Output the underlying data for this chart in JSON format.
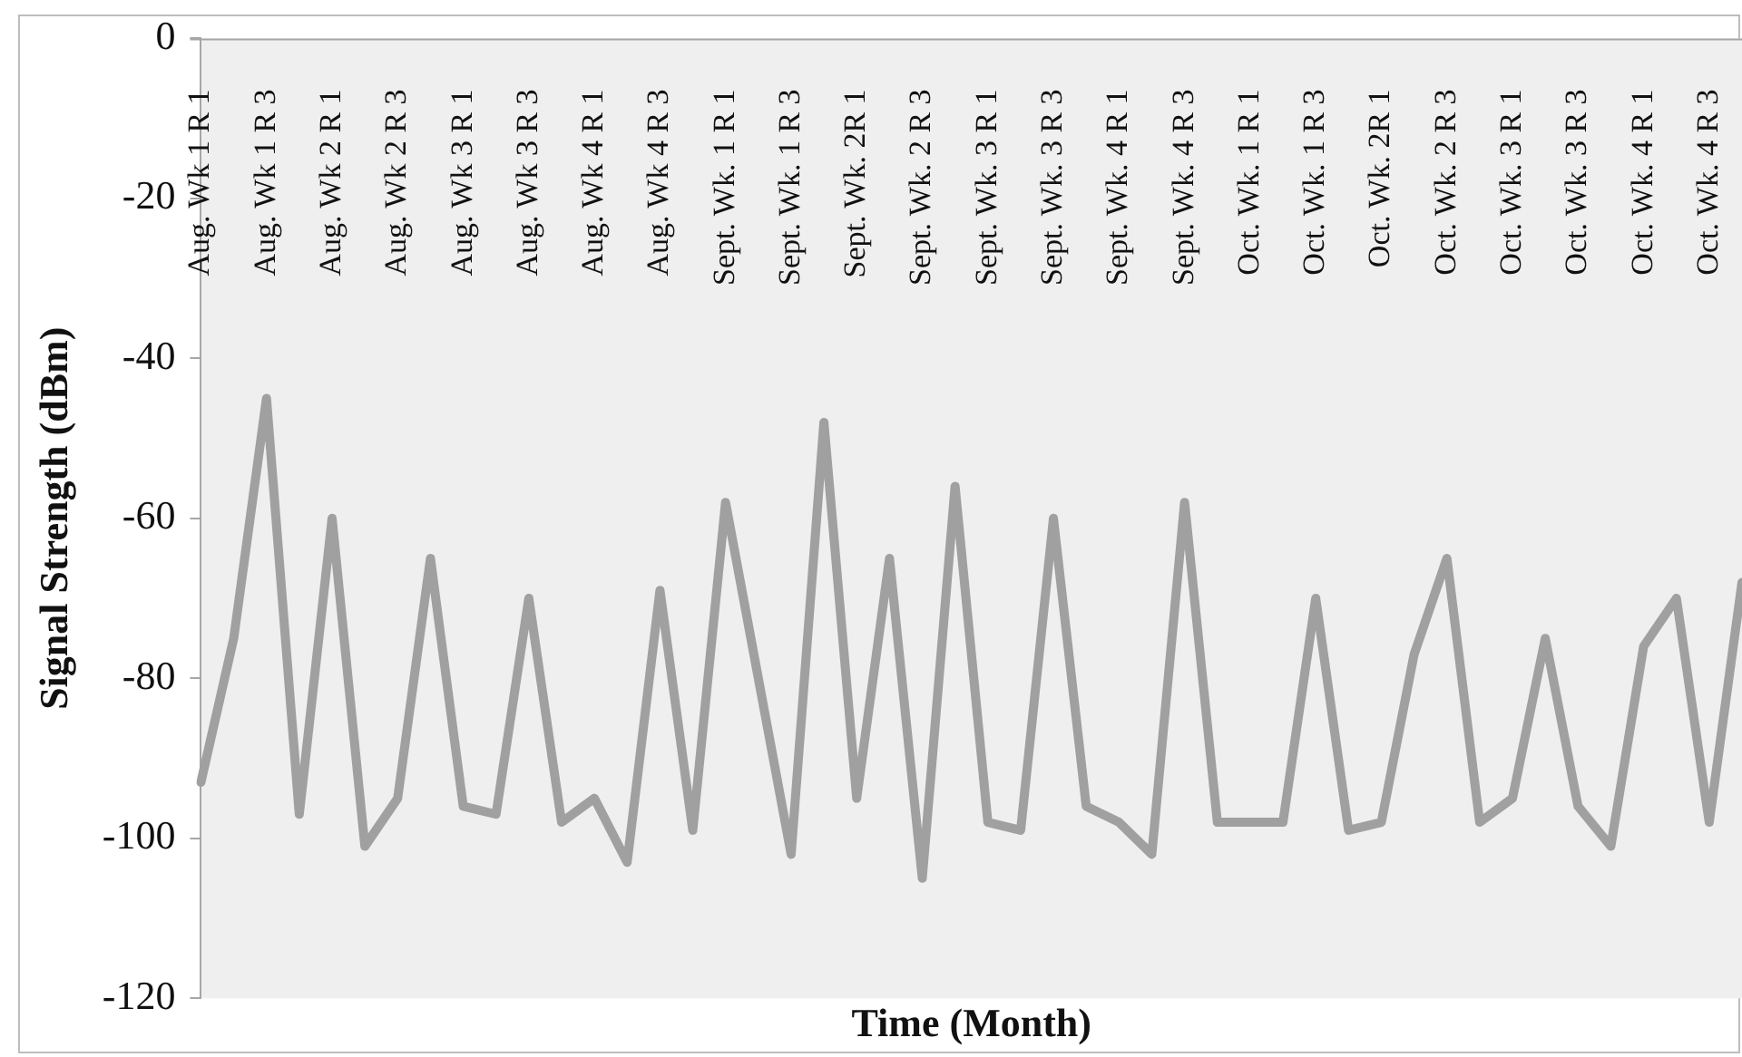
{
  "chart_data": {
    "type": "line",
    "xlabel": "Time (Month)",
    "ylabel": "Signal Strength (dBm)",
    "categories": [
      "Aug. Wk 1 R 1",
      null,
      "Aug. Wk 1 R 3",
      null,
      "Aug. Wk 2 R 1",
      null,
      "Aug. Wk 2 R 3",
      null,
      "Aug. Wk 3 R 1",
      null,
      "Aug. Wk 3 R 3",
      null,
      "Aug. Wk 4 R 1",
      null,
      "Aug. Wk 4 R 3",
      null,
      "Sept. Wk. 1 R 1",
      null,
      "Sept. Wk. 1 R 3",
      null,
      "Sept. Wk. 2R 1",
      null,
      "Sept. Wk. 2 R 3",
      null,
      "Sept. Wk. 3 R 1",
      null,
      "Sept. Wk. 3 R 3",
      null,
      "Sept. Wk. 4 R 1",
      null,
      "Sept. Wk. 4 R 3",
      null,
      "Oct. Wk. 1 R 1",
      null,
      "Oct. Wk. 1 R 3",
      null,
      "Oct. Wk. 2R 1",
      null,
      "Oct. Wk. 2 R 3",
      null,
      "Oct. Wk. 3 R 1",
      null,
      "Oct. Wk. 3 R 3",
      null,
      "Oct. Wk. 4 R 1",
      null,
      "Oct. Wk. 4 R 3",
      null
    ],
    "series": [
      {
        "color": "#a0a0a0",
        "values": [
          -93,
          -75,
          -45,
          -97,
          -60,
          -101,
          -95,
          -65,
          -96,
          -97,
          -70,
          -98,
          -95,
          -103,
          -69,
          -99,
          -58,
          -80,
          -102,
          -48,
          -95,
          -65,
          -105,
          -56,
          -98,
          -99,
          -60,
          -96,
          -98,
          -102,
          -58,
          -98,
          -98,
          -98,
          -70,
          -99,
          -98,
          -77,
          -65,
          -98,
          -95,
          -75,
          -96,
          -101,
          -76,
          -70,
          -98,
          -68
        ]
      }
    ],
    "ylim": [
      -120,
      0
    ],
    "yticks": [
      0,
      -20,
      -40,
      -60,
      -80,
      -100,
      -120
    ],
    "grid": false,
    "legend": false,
    "marker": "none",
    "line_style": "solid"
  }
}
